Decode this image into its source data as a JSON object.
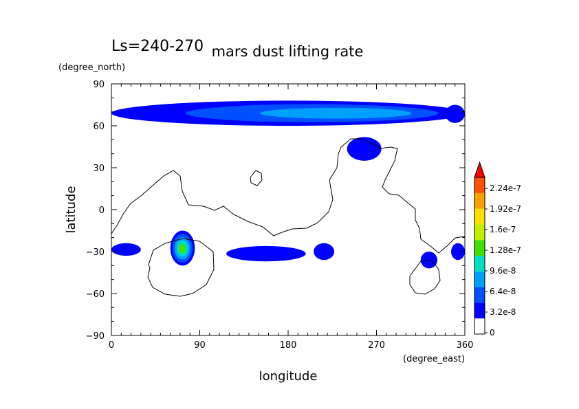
{
  "chart_data": {
    "type": "heatmap",
    "title": "mars dust lifting rate",
    "subtitle": "Ls=240-270",
    "xlabel": "longitude",
    "ylabel": "latitude",
    "x_units": "(degree_east)",
    "y_units": "(degree_north)",
    "xlim": [
      0,
      360
    ],
    "ylim": [
      -90,
      90
    ],
    "x_ticks": [
      0,
      90,
      180,
      270,
      360
    ],
    "y_ticks": [
      -90,
      -60,
      -30,
      0,
      30,
      60,
      90
    ],
    "x_tick_labels": [
      "0",
      "90",
      "180",
      "270",
      "360"
    ],
    "y_tick_labels": [
      "−90",
      "−60",
      "−30",
      "0",
      "30",
      "60",
      "90"
    ],
    "colorbar": {
      "levels": [
        0,
        3.2e-08,
        6.4e-08,
        9.6e-08,
        1.28e-07,
        1.6e-07,
        1.92e-07,
        2.24e-07
      ],
      "labels": [
        "0",
        "3.2e-8",
        "6.4e-8",
        "9.6e-8",
        "1.28e-7",
        "1.6e-7",
        "1.92e-7",
        "2.24e-7"
      ],
      "colors": [
        "#ffffff",
        "#0000ff",
        "#0050ff",
        "#00a0ff",
        "#00e0c0",
        "#40e000",
        "#c0f000",
        "#ffe000",
        "#ffa000",
        "#ff5000",
        "#ff0000"
      ],
      "extend": "max"
    },
    "grid": false,
    "contour_line": "topography",
    "regions": [
      {
        "lon": [
          0,
          360
        ],
        "lat": [
          60,
          78
        ],
        "peak": 1e-07,
        "peak_lon": 265,
        "peak_lat": 69
      },
      {
        "lon": [
          240,
          275
        ],
        "lat": [
          35,
          52
        ],
        "peak": 4e-08
      },
      {
        "lon": [
          60,
          85
        ],
        "lat": [
          -40,
          -15
        ],
        "peak": 1.6e-07,
        "peak_lon": 72,
        "peak_lat": -28
      },
      {
        "lon": [
          0,
          30
        ],
        "lat": [
          -33,
          -24
        ],
        "peak": 3e-08
      },
      {
        "lon": [
          117,
          198
        ],
        "lat": [
          -37,
          -26
        ],
        "peak": 4e-08
      },
      {
        "lon": [
          206,
          227
        ],
        "lat": [
          -36,
          -24
        ],
        "peak": 3e-08
      },
      {
        "lon": [
          315,
          332
        ],
        "lat": [
          -42,
          -30
        ],
        "peak": 3e-08
      },
      {
        "lon": [
          346,
          360
        ],
        "lat": [
          -36,
          -24
        ],
        "peak": 3e-08
      },
      {
        "lon": [
          340,
          360
        ],
        "lat": [
          62,
          75
        ],
        "peak": 3e-08
      }
    ]
  }
}
